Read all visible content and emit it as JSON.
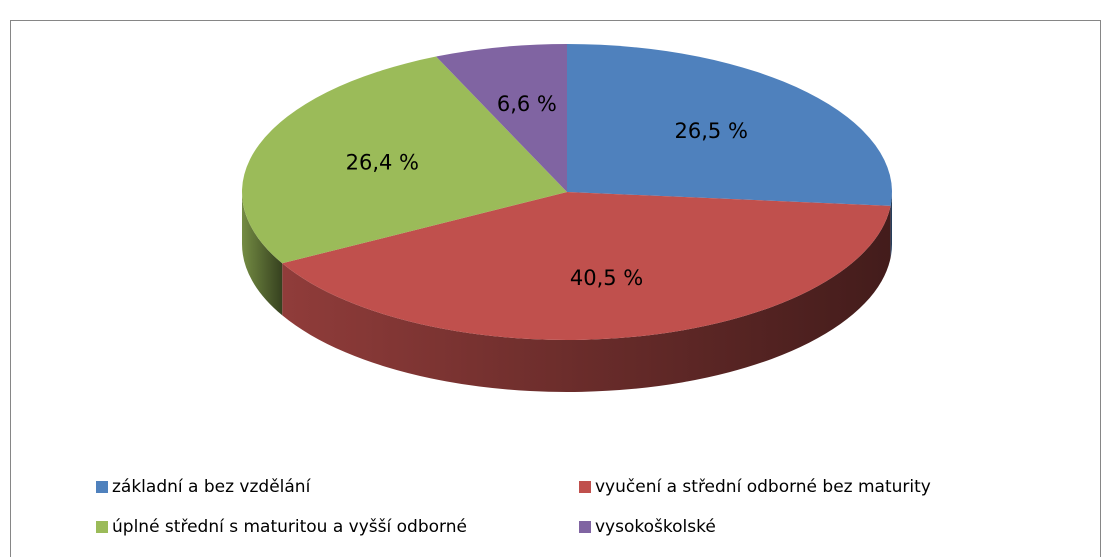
{
  "chart_data": {
    "type": "pie",
    "categories": [
      "základní a bez vzdělání",
      "vyučení a střední odborné bez maturity",
      "úplné střední s maturitou a vyšší odborné",
      "vysokoškolské"
    ],
    "values": [
      26.5,
      40.5,
      26.4,
      6.6
    ],
    "value_labels": [
      "26,5 %",
      "40,5 %",
      "26,4 %",
      "6,6 %"
    ],
    "colors": [
      "#4f81bd",
      "#c0504d",
      "#9bbb59",
      "#8064a2"
    ],
    "legend": "bottom"
  }
}
